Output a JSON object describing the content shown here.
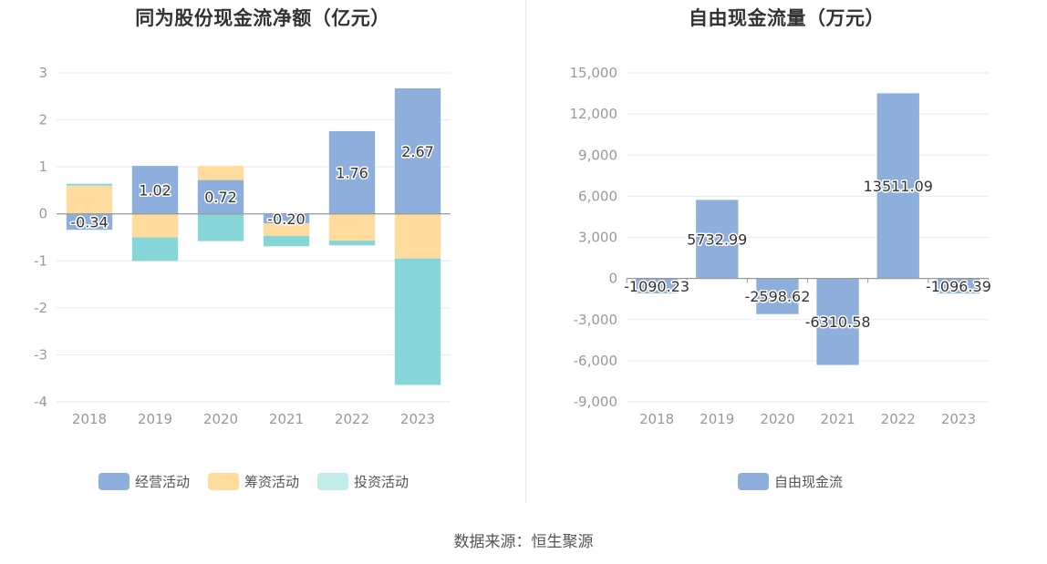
{
  "source": "数据来源：恒生聚源",
  "colors": {
    "operating": "#8eaedc",
    "financing": "#ffdc9e",
    "investing": "#86d6d9",
    "investing_legend": "#c2ebec",
    "fcf": "#8eaedc",
    "grid": "#e8eaf0",
    "axis": "#999999",
    "tick": "#999999"
  },
  "chart_data": [
    {
      "type": "bar",
      "stacked": true,
      "title": "同为股份现金流净额（亿元）",
      "categories": [
        "2018",
        "2019",
        "2020",
        "2021",
        "2022",
        "2023"
      ],
      "ylim": [
        -4,
        3
      ],
      "yticks": [
        -4,
        -3,
        -2,
        -1,
        0,
        1,
        2,
        3
      ],
      "ytick_labels": [
        "-4",
        "-3",
        "-2",
        "-1",
        "0",
        "1",
        "2",
        "3"
      ],
      "grid": true,
      "legend_position": "bottom",
      "series": [
        {
          "name": "经营活动",
          "color_key": "operating",
          "values": [
            -0.34,
            1.02,
            0.72,
            -0.2,
            1.76,
            2.67
          ],
          "labels": [
            "-0.34",
            "1.02",
            "0.72",
            "-0.20",
            "1.76",
            "2.67"
          ]
        },
        {
          "name": "筹资活动",
          "color_key": "financing",
          "values": [
            0.6,
            -0.5,
            0.3,
            -0.27,
            -0.57,
            -0.95
          ]
        },
        {
          "name": "投资活动",
          "color_key": "investing",
          "values": [
            0.04,
            -0.5,
            -0.58,
            -0.22,
            -0.1,
            -2.69
          ]
        }
      ]
    },
    {
      "type": "bar",
      "title": "自由现金流量（万元）",
      "categories": [
        "2018",
        "2019",
        "2020",
        "2021",
        "2022",
        "2023"
      ],
      "ylim": [
        -9000,
        15000
      ],
      "yticks": [
        -9000,
        -6000,
        -3000,
        0,
        3000,
        6000,
        9000,
        12000,
        15000
      ],
      "ytick_labels": [
        "-9,000",
        "-6,000",
        "-3,000",
        "0",
        "3,000",
        "6,000",
        "9,000",
        "12,000",
        "15,000"
      ],
      "grid": true,
      "legend_position": "bottom",
      "series": [
        {
          "name": "自由现金流",
          "color_key": "fcf",
          "values": [
            -1090.23,
            5732.99,
            -2598.62,
            -6310.58,
            13511.09,
            -1096.39
          ],
          "labels": [
            "-1090.23",
            "5732.99",
            "-2598.62",
            "-6310.58",
            "13511.09",
            "-1096.39"
          ]
        }
      ]
    }
  ]
}
